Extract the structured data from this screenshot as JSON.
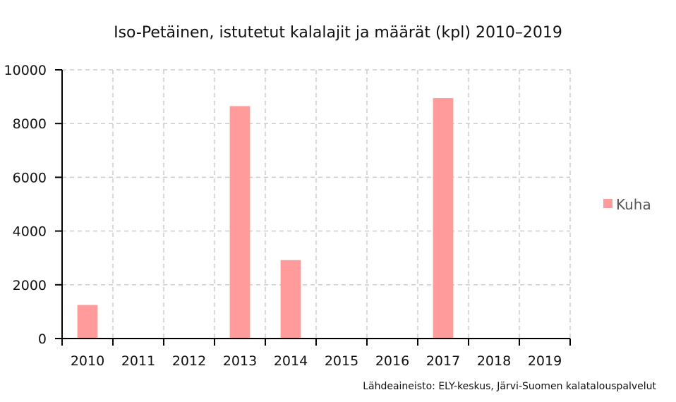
{
  "chart_data": {
    "type": "bar",
    "title": "Iso-Petäinen, istutetut kalalajit ja määrät (kpl) 2010–2019",
    "xlabel": "",
    "ylabel": "",
    "categories": [
      "2010",
      "2011",
      "2012",
      "2013",
      "2014",
      "2015",
      "2016",
      "2017",
      "2018",
      "2019"
    ],
    "series": [
      {
        "name": "Kuha",
        "values": [
          1250,
          0,
          0,
          8650,
          2920,
          0,
          0,
          8950,
          0,
          0
        ],
        "color": "#ff9b9b"
      }
    ],
    "ylim": [
      0,
      10000
    ],
    "yticks": [
      0,
      2000,
      4000,
      6000,
      8000,
      10000
    ],
    "grid": true,
    "legend_position": "right",
    "source": "Lähdeaineisto: ELY-keskus, Järvi-Suomen kalatalouspalvelut"
  }
}
